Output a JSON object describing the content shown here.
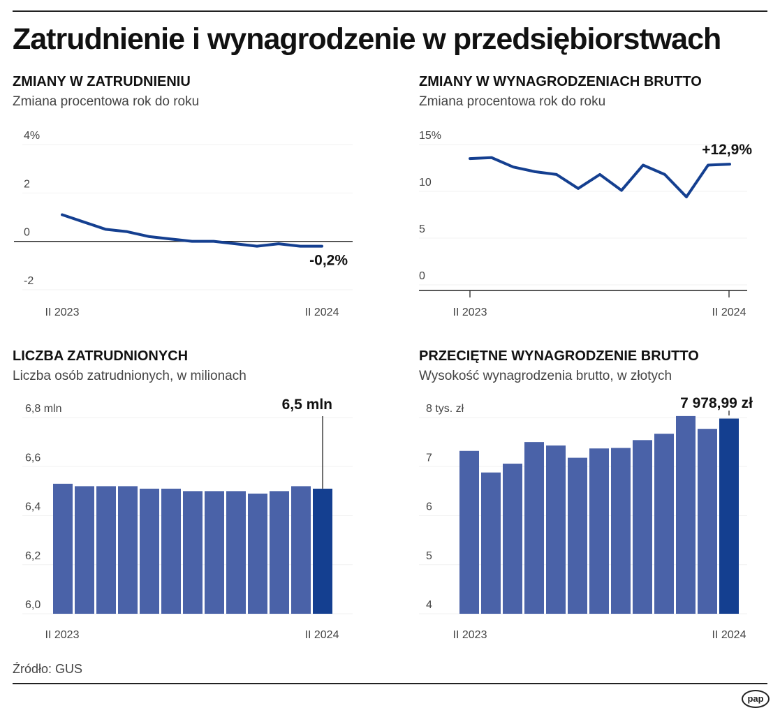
{
  "title": "Zatrudnienie i wynagrodzenie w przedsiębiorstwach",
  "source": "Źródło: GUS",
  "logo": "pap",
  "colors": {
    "bar": "#4a62a8",
    "highlight": "#143f90",
    "line": "#143f90"
  },
  "chart_data": [
    {
      "type": "line",
      "title": "ZMIANY W ZATRUDNIENIU",
      "subtitle": "Zmiana procentowa rok do roku",
      "x_labels": [
        "II 2023",
        "II 2024"
      ],
      "y_ticks": [
        "4%",
        "2",
        "0",
        "-2"
      ],
      "ylim": [
        -2,
        4
      ],
      "values": [
        1.1,
        0.8,
        0.5,
        0.4,
        0.2,
        0.1,
        0.0,
        0.0,
        -0.1,
        -0.2,
        -0.1,
        -0.2,
        -0.2
      ],
      "annotation": "-0,2%"
    },
    {
      "type": "line",
      "title": "ZMIANY W WYNAGRODZENIACH BRUTTO",
      "subtitle": "Zmiana procentowa rok do roku",
      "x_labels": [
        "II 2023",
        "II 2024"
      ],
      "y_ticks": [
        "15%",
        "10",
        "5",
        "0"
      ],
      "ylim": [
        0,
        15
      ],
      "values": [
        13.5,
        13.6,
        12.6,
        12.1,
        11.8,
        10.3,
        11.8,
        10.1,
        12.8,
        11.8,
        9.4,
        12.8,
        12.9
      ],
      "annotation": "+12,9%"
    },
    {
      "type": "bar",
      "title": "LICZBA ZATRUDNIONYCH",
      "subtitle": "Liczba osób zatrudnionych, w milionach",
      "x_labels": [
        "II 2023",
        "II 2024"
      ],
      "y_ticks": [
        "6,8 mln",
        "6,6",
        "6,4",
        "6,2",
        "6,0"
      ],
      "ylim": [
        6.0,
        6.8
      ],
      "values": [
        6.53,
        6.52,
        6.52,
        6.52,
        6.51,
        6.51,
        6.5,
        6.5,
        6.5,
        6.49,
        6.5,
        6.52,
        6.51
      ],
      "annotation": "6,5 mln"
    },
    {
      "type": "bar",
      "title": "PRZECIĘTNE WYNAGRODZENIE BRUTTO",
      "subtitle": "Wysokość wynagrodzenia brutto, w złotych",
      "x_labels": [
        "II 2023",
        "II 2024"
      ],
      "y_ticks": [
        "8 tys. zł",
        "7",
        "6",
        "5",
        "4"
      ],
      "ylim": [
        4,
        8
      ],
      "values": [
        7.32,
        6.88,
        7.06,
        7.5,
        7.43,
        7.18,
        7.37,
        7.38,
        7.54,
        7.67,
        8.03,
        7.77,
        7.979
      ],
      "annotation": "7 978,99 zł"
    }
  ]
}
